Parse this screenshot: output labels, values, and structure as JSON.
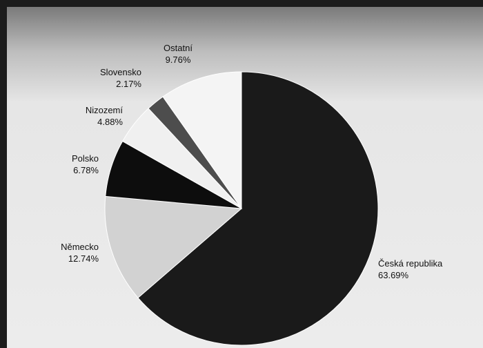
{
  "chart_data": {
    "type": "pie",
    "title": "",
    "legend": "none",
    "start_angle_deg": 0,
    "direction": "clockwise",
    "slices": [
      {
        "label": "Česká republika",
        "value": 63.69,
        "value_label": "63.69%",
        "color": "#1a1a1a"
      },
      {
        "label": "Německo",
        "value": 12.74,
        "value_label": "12.74%",
        "color": "#d2d2d2"
      },
      {
        "label": "Polsko",
        "value": 6.78,
        "value_label": "6.78%",
        "color": "#0d0d0d"
      },
      {
        "label": "Nizozemí",
        "value": 4.88,
        "value_label": "4.88%",
        "color": "#f0f0f0"
      },
      {
        "label": "Slovensko",
        "value": 2.17,
        "value_label": "2.17%",
        "color": "#4d4d4d"
      },
      {
        "label": "Ostatní",
        "value": 9.76,
        "value_label": "9.76%",
        "color": "#f4f4f4"
      }
    ]
  }
}
